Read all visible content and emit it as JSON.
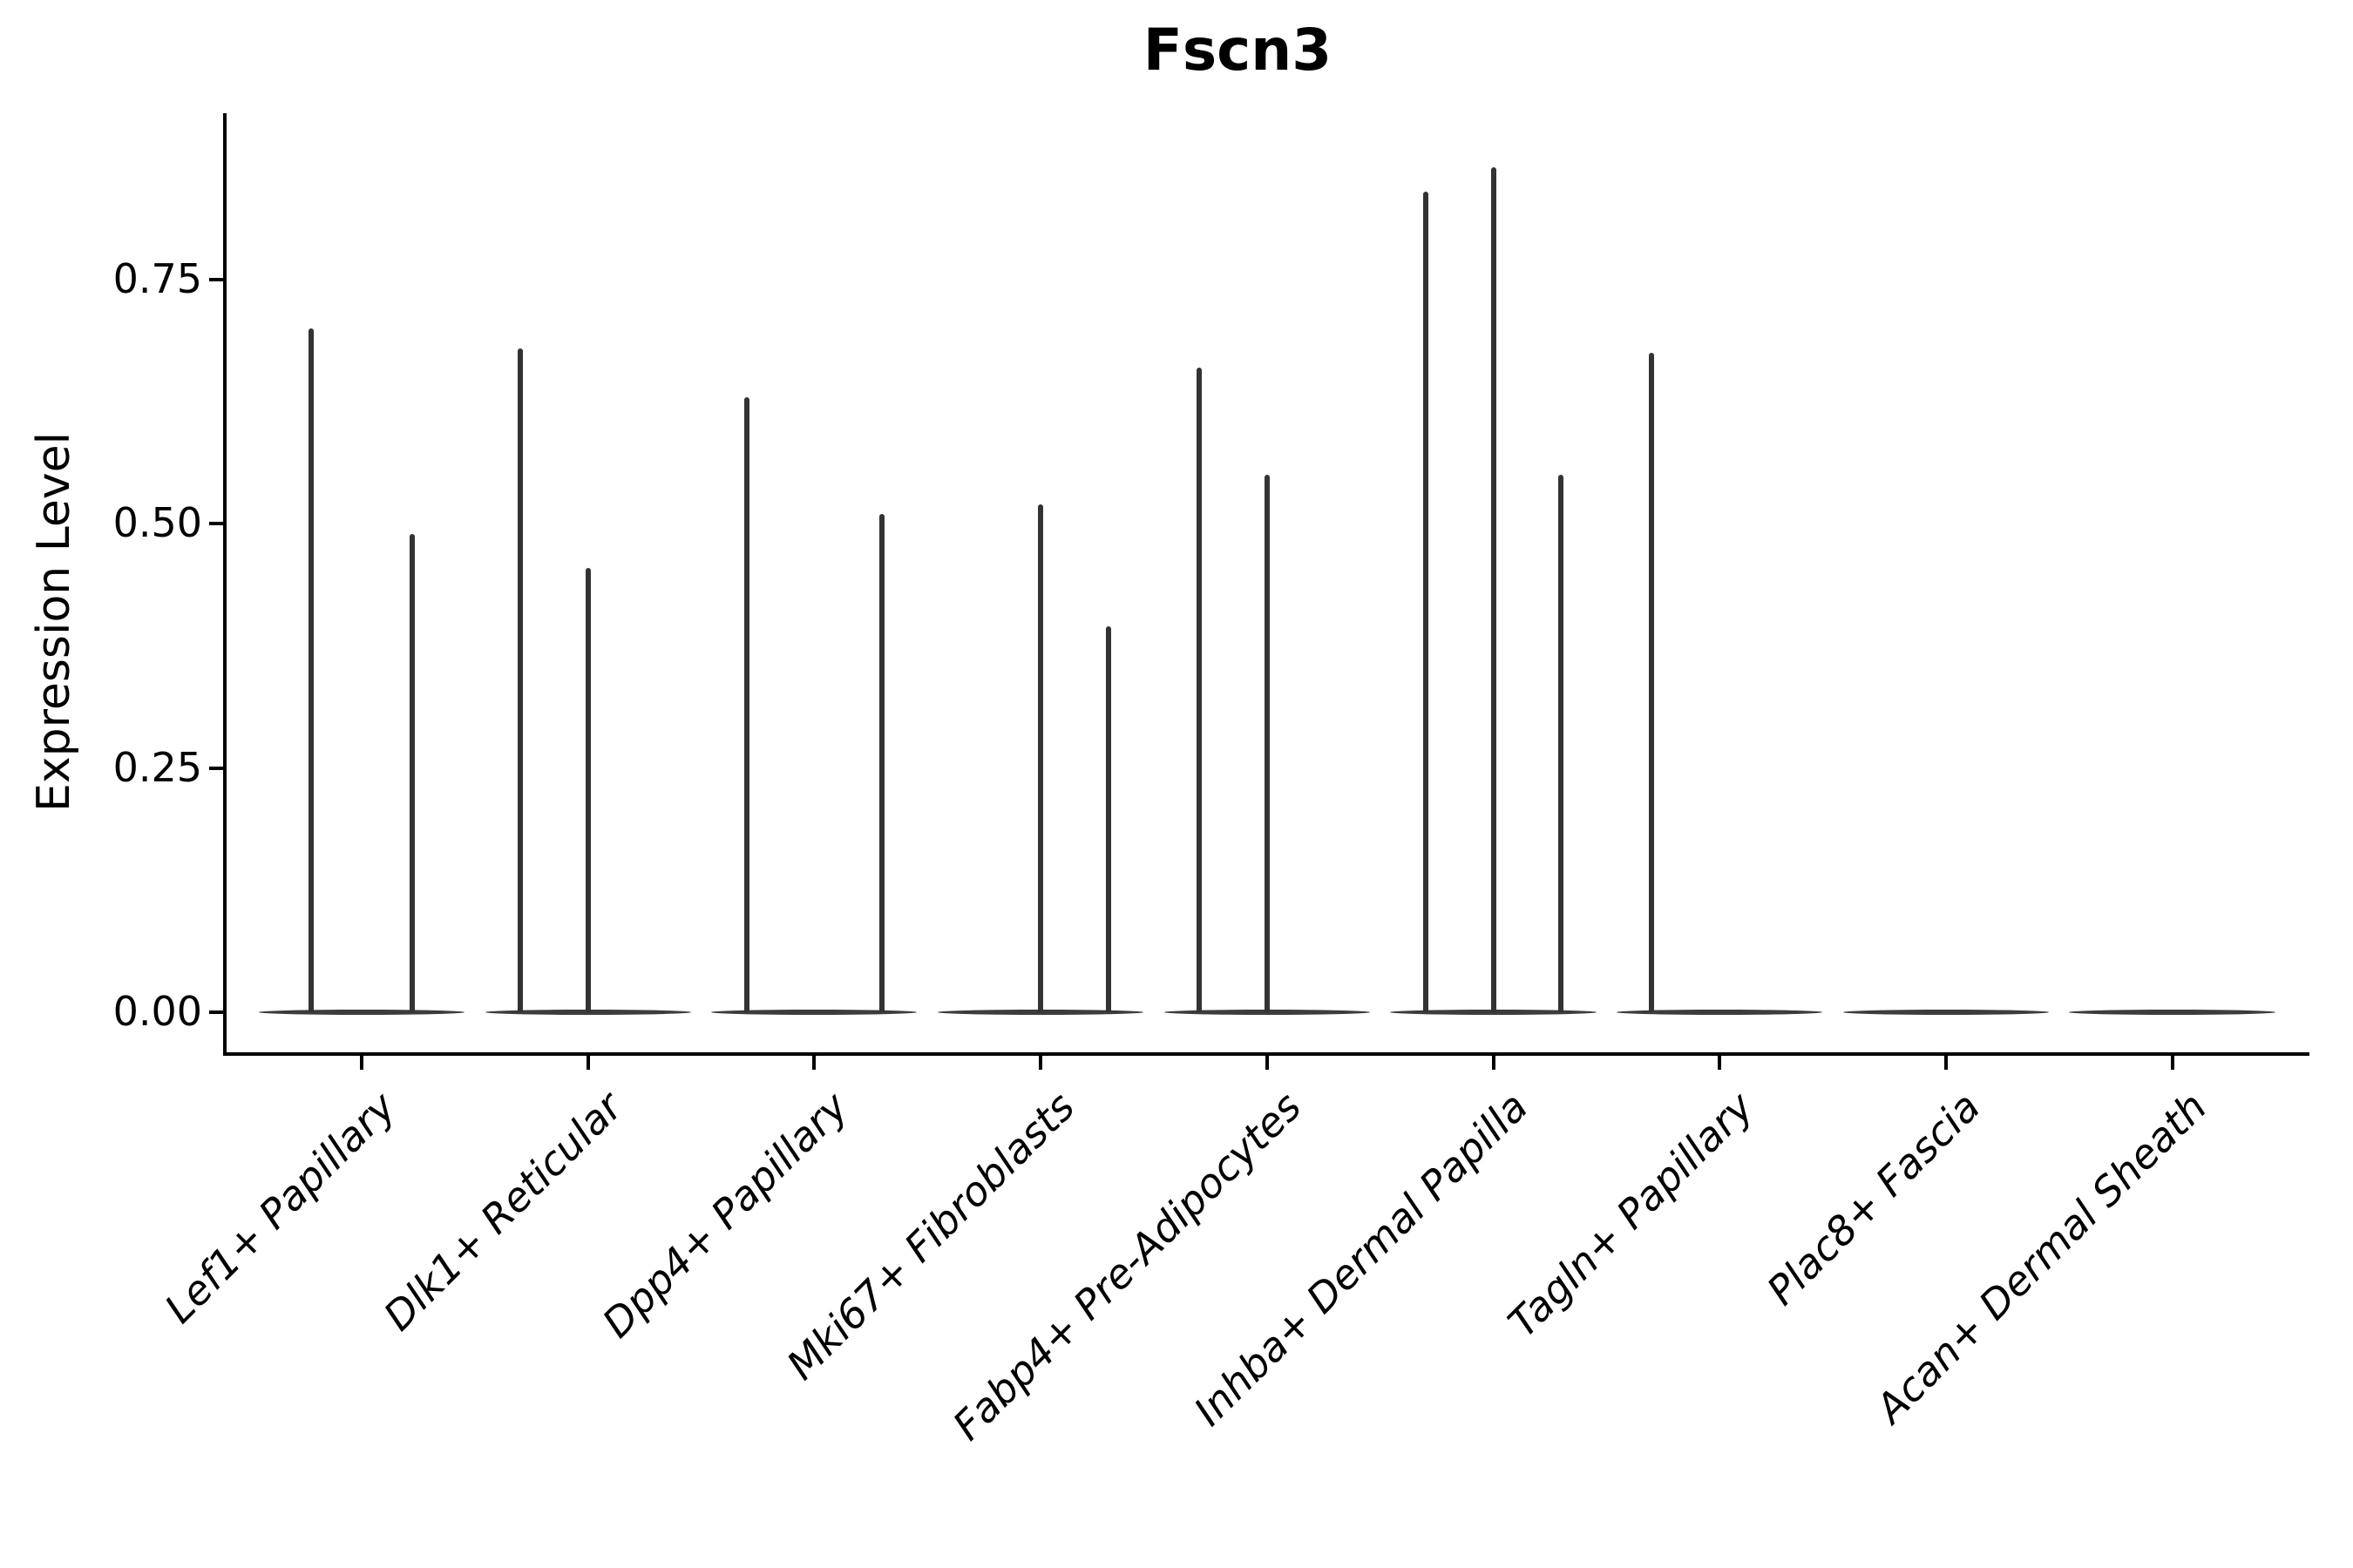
{
  "chart_data": {
    "type": "violin",
    "title": "Fscn3",
    "ylabel": "Expression Level",
    "xlabel": "",
    "ylim": [
      0,
      0.92
    ],
    "grid": false,
    "legend": null,
    "y_ticks": [
      {
        "value": 0.0,
        "label": "0.00"
      },
      {
        "value": 0.25,
        "label": "0.25"
      },
      {
        "value": 0.5,
        "label": "0.50"
      },
      {
        "value": 0.75,
        "label": "0.75"
      }
    ],
    "categories": [
      "Lef1+ Papillary",
      "Dlk1+ Reticular",
      "Dpp4+ Papillary",
      "Mki67+ Fibroblasts",
      "Fabp4+ Pre-Adipocytes",
      "Inhba+ Dermal Papilla",
      "Tagln+ Papillary",
      "Plac8+ Fascia",
      "Acan+ Dermal Sheath"
    ],
    "violins": [
      {
        "category": "Lef1+ Papillary",
        "spikes": [
          {
            "offset": -0.225,
            "max": 0.7
          },
          {
            "offset": 0.225,
            "max": 0.49
          }
        ]
      },
      {
        "category": "Dlk1+ Reticular",
        "spikes": [
          {
            "offset": -0.3,
            "max": 0.68
          },
          {
            "offset": 0.0,
            "max": 0.455
          }
        ]
      },
      {
        "category": "Dpp4+ Papillary",
        "spikes": [
          {
            "offset": -0.3,
            "max": 0.63
          },
          {
            "offset": 0.3,
            "max": 0.51
          }
        ]
      },
      {
        "category": "Mki67+ Fibroblasts",
        "spikes": [
          {
            "offset": 0.0,
            "max": 0.52
          },
          {
            "offset": 0.3,
            "max": 0.395
          }
        ]
      },
      {
        "category": "Fabp4+ Pre-Adipocytes",
        "spikes": [
          {
            "offset": -0.3,
            "max": 0.66
          },
          {
            "offset": 0.0,
            "max": 0.55
          }
        ]
      },
      {
        "category": "Inhba+ Dermal Papilla",
        "spikes": [
          {
            "offset": -0.3,
            "max": 0.84
          },
          {
            "offset": 0.0,
            "max": 0.865
          },
          {
            "offset": 0.3,
            "max": 0.55
          }
        ]
      },
      {
        "category": "Tagln+ Papillary",
        "spikes": [
          {
            "offset": -0.3,
            "max": 0.675
          }
        ]
      },
      {
        "category": "Plac8+ Fascia",
        "spikes": []
      },
      {
        "category": "Acan+ Dermal Sheath",
        "spikes": []
      }
    ],
    "baseline_halfwidth_frac": 0.455,
    "colors": {
      "spike": "#333333",
      "baseline": "#3c3c3c",
      "axis": "#000000",
      "text": "#000000",
      "background": "#ffffff"
    }
  }
}
